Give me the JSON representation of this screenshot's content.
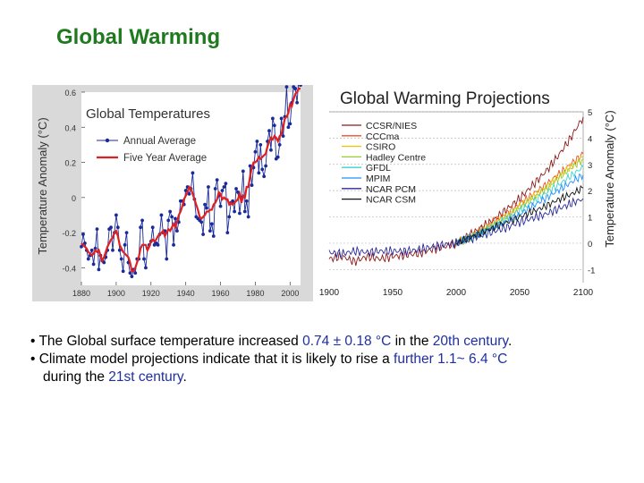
{
  "slide": {
    "title": "Global Warming",
    "bullets": [
      {
        "parts": [
          {
            "text": "• The Global surface temperature increased ",
            "hl": false
          },
          {
            "text": "0.74 ± 0.18 °C",
            "hl": true
          },
          {
            "text": " in the ",
            "hl": false
          },
          {
            "text": "20th century",
            "hl": true
          },
          {
            "text": ".",
            "hl": false
          }
        ]
      },
      {
        "parts": [
          {
            "text": "• Climate model projections indicate that it is likely to rise a ",
            "hl": false
          },
          {
            "text": "further 1.1~ 6.4 °C",
            "hl": true
          }
        ]
      },
      {
        "continuation": true,
        "parts": [
          {
            "text": "during the ",
            "hl": false
          },
          {
            "text": "21st century",
            "hl": true
          },
          {
            "text": ".",
            "hl": false
          }
        ]
      }
    ],
    "colors": {
      "title": "#1f7a1f",
      "highlight": "#1f2fa0"
    }
  },
  "chart_data": [
    {
      "type": "line",
      "title": "Global Temperatures",
      "ylabel": "Temperature Anomaly (°C)",
      "xlabel": "",
      "xlim": [
        1880,
        2006
      ],
      "ylim": [
        -0.5,
        0.6
      ],
      "x_ticks": [
        1880,
        1900,
        1920,
        1940,
        1960,
        1980,
        2000
      ],
      "y_ticks": [
        -0.4,
        -0.2,
        0,
        0.2,
        0.4,
        0.6
      ],
      "y_tick_labels": [
        "-0.4",
        "-0.2",
        "0",
        "0.2",
        "0.4",
        "0.6"
      ],
      "grid": false,
      "legend_position": "top-left",
      "years_start": 1880,
      "series": [
        {
          "name": "Annual Average",
          "color": "#1a2a9a",
          "marker": "dot",
          "values": [
            -0.28,
            -0.21,
            -0.26,
            -0.3,
            -0.35,
            -0.33,
            -0.3,
            -0.38,
            -0.29,
            -0.18,
            -0.41,
            -0.33,
            -0.36,
            -0.37,
            -0.34,
            -0.3,
            -0.18,
            -0.17,
            -0.3,
            -0.2,
            -0.1,
            -0.17,
            -0.3,
            -0.35,
            -0.42,
            -0.27,
            -0.2,
            -0.37,
            -0.43,
            -0.45,
            -0.41,
            -0.43,
            -0.35,
            -0.35,
            -0.17,
            -0.13,
            -0.35,
            -0.4,
            -0.29,
            -0.27,
            -0.25,
            -0.17,
            -0.27,
            -0.26,
            -0.27,
            -0.21,
            -0.1,
            -0.2,
            -0.19,
            -0.35,
            -0.13,
            -0.08,
            -0.11,
            -0.27,
            -0.12,
            -0.19,
            -0.14,
            -0.02,
            -0.02,
            -0.04,
            0.04,
            0.06,
            0.02,
            0.05,
            0.14,
            -0.01,
            -0.11,
            -0.12,
            -0.13,
            -0.14,
            -0.21,
            -0.04,
            -0.06,
            0.06,
            -0.19,
            -0.15,
            -0.22,
            0.05,
            0.1,
            0.01,
            -0.05,
            0.04,
            0.06,
            0.08,
            -0.2,
            -0.11,
            -0.03,
            -0.02,
            -0.08,
            0.05,
            0.03,
            -0.09,
            0.0,
            0.15,
            -0.08,
            -0.02,
            -0.11,
            0.18,
            0.07,
            0.17,
            0.26,
            0.32,
            0.14,
            0.3,
            0.16,
            0.12,
            0.18,
            0.32,
            0.38,
            0.27,
            0.45,
            0.41,
            0.22,
            0.23,
            0.3,
            0.45,
            0.35,
            0.46,
            0.63,
            0.4,
            0.42,
            0.54,
            0.63,
            0.62,
            0.54,
            0.68,
            0.64
          ]
        },
        {
          "name": "Five Year Average",
          "color": "#e02020",
          "marker": "none",
          "values": [
            -0.26,
            -0.27,
            -0.28,
            -0.29,
            -0.31,
            -0.32,
            -0.33,
            -0.32,
            -0.3,
            -0.31,
            -0.3,
            -0.33,
            -0.36,
            -0.34,
            -0.31,
            -0.28,
            -0.26,
            -0.24,
            -0.23,
            -0.2,
            -0.19,
            -0.22,
            -0.27,
            -0.29,
            -0.31,
            -0.32,
            -0.33,
            -0.34,
            -0.37,
            -0.42,
            -0.42,
            -0.4,
            -0.37,
            -0.34,
            -0.29,
            -0.27,
            -0.27,
            -0.27,
            -0.3,
            -0.28,
            -0.25,
            -0.24,
            -0.25,
            -0.24,
            -0.22,
            -0.21,
            -0.2,
            -0.19,
            -0.22,
            -0.2,
            -0.18,
            -0.19,
            -0.17,
            -0.15,
            -0.17,
            -0.14,
            -0.1,
            -0.08,
            -0.05,
            -0.01,
            0.01,
            0.03,
            0.06,
            0.05,
            0.02,
            -0.01,
            -0.04,
            -0.07,
            -0.11,
            -0.12,
            -0.11,
            -0.1,
            -0.08,
            -0.08,
            -0.07,
            -0.07,
            -0.04,
            -0.03,
            -0.01,
            0.03,
            0.02,
            -0.01,
            0.0,
            -0.01,
            -0.01,
            -0.04,
            -0.03,
            -0.04,
            -0.03,
            -0.02,
            -0.01,
            0.02,
            -0.03,
            0.01,
            0.0,
            0.06,
            0.06,
            0.12,
            0.17,
            0.2,
            0.2,
            0.21,
            0.23,
            0.22,
            0.23,
            0.24,
            0.25,
            0.29,
            0.32,
            0.34,
            0.33,
            0.35,
            0.34,
            0.32,
            0.35,
            0.36,
            0.4,
            0.45,
            0.46,
            0.48,
            0.53,
            0.52,
            0.56,
            0.59,
            0.6,
            0.62,
            0.62
          ]
        }
      ]
    },
    {
      "type": "line",
      "title": "Global Warming Projections",
      "ylabel": "Temperature Anomaly (°C)",
      "xlabel": "",
      "xlim": [
        1900,
        2100
      ],
      "ylim": [
        -1.5,
        5
      ],
      "x_ticks": [
        1900,
        1950,
        2000,
        2050,
        2100
      ],
      "y_ticks": [
        -1,
        0,
        1,
        2,
        3,
        4,
        5
      ],
      "y_tick_labels": [
        "-1",
        "0",
        "1",
        "2",
        "3",
        "4",
        "5"
      ],
      "y_axis_side": "right",
      "grid": true,
      "legend_position": "top-left",
      "x": [
        1900,
        1910,
        1920,
        1930,
        1940,
        1950,
        1960,
        1970,
        1980,
        1990,
        2000,
        2010,
        2020,
        2030,
        2040,
        2050,
        2060,
        2070,
        2080,
        2090,
        2100
      ],
      "historical_models": [
        "CCSR/NIES",
        "NCAR PCM"
      ],
      "series": [
        {
          "name": "CCSR/NIES",
          "color": "#8b1a1a",
          "values": [
            -0.6,
            -0.5,
            -0.7,
            -0.5,
            -0.6,
            -0.5,
            -0.45,
            -0.4,
            -0.25,
            -0.15,
            0.0,
            0.3,
            0.6,
            0.9,
            1.3,
            1.7,
            2.2,
            2.7,
            3.3,
            4.0,
            4.8
          ]
        },
        {
          "name": "CCCma",
          "color": "#e8502a",
          "values": [
            null,
            null,
            null,
            null,
            null,
            null,
            null,
            null,
            null,
            null,
            0.0,
            0.25,
            0.5,
            0.85,
            1.15,
            1.5,
            1.85,
            2.2,
            2.6,
            3.0,
            3.4
          ]
        },
        {
          "name": "CSIRO",
          "color": "#f2c200",
          "values": [
            null,
            null,
            null,
            null,
            null,
            null,
            null,
            null,
            null,
            null,
            0.0,
            0.2,
            0.45,
            0.75,
            1.05,
            1.4,
            1.75,
            2.1,
            2.5,
            2.9,
            3.3
          ]
        },
        {
          "name": "Hadley Centre",
          "color": "#9acd32",
          "values": [
            null,
            null,
            null,
            null,
            null,
            null,
            null,
            null,
            null,
            null,
            0.0,
            0.2,
            0.45,
            0.7,
            1.0,
            1.35,
            1.7,
            2.05,
            2.45,
            2.85,
            3.2
          ]
        },
        {
          "name": "GFDL",
          "color": "#3fd0d0",
          "values": [
            null,
            null,
            null,
            null,
            null,
            null,
            null,
            null,
            null,
            null,
            0.0,
            0.2,
            0.4,
            0.65,
            0.95,
            1.25,
            1.55,
            1.9,
            2.2,
            2.55,
            2.9
          ]
        },
        {
          "name": "MPIM",
          "color": "#1e90ff",
          "values": [
            null,
            null,
            null,
            null,
            null,
            null,
            null,
            null,
            null,
            null,
            0.0,
            0.2,
            0.4,
            0.6,
            0.85,
            1.1,
            1.4,
            1.7,
            2.0,
            2.3,
            2.6
          ]
        },
        {
          "name": "NCAR PCM",
          "color": "#2a2a9a",
          "values": [
            -0.35,
            -0.4,
            -0.3,
            -0.35,
            -0.3,
            -0.3,
            -0.3,
            -0.25,
            -0.15,
            -0.05,
            0.0,
            0.15,
            0.3,
            0.45,
            0.6,
            0.8,
            0.95,
            1.1,
            1.3,
            1.5,
            1.7
          ]
        },
        {
          "name": "NCAR CSM",
          "color": "#111111",
          "values": [
            null,
            null,
            null,
            null,
            null,
            null,
            null,
            null,
            null,
            null,
            0.0,
            0.2,
            0.4,
            0.6,
            0.8,
            1.0,
            1.2,
            1.4,
            1.65,
            1.85,
            2.1
          ]
        }
      ]
    }
  ]
}
